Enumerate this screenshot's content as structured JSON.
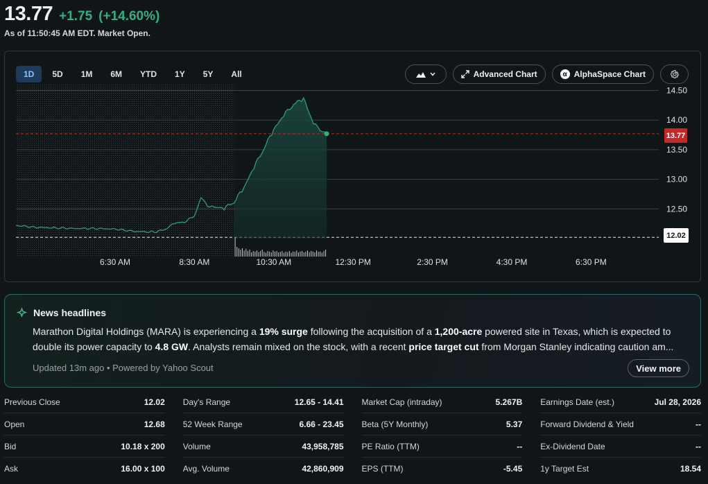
{
  "quote": {
    "price": "13.77",
    "change": "+1.75",
    "change_pct": "(+14.60%)",
    "as_of": "As of 11:50:45 AM EDT. Market Open."
  },
  "colors": {
    "up": "#2fb17e",
    "accent": "#8fc3ff",
    "price_tag": "#c62828"
  },
  "chart": {
    "ranges": [
      "1D",
      "5D",
      "1M",
      "6M",
      "YTD",
      "1Y",
      "5Y",
      "All"
    ],
    "active_range": "1D",
    "chart_type_icon": "mountain-chart-icon",
    "advanced_label": "Advanced Chart",
    "alphaspace_label": "AlphaSpace Chart",
    "settings_icon": "gear-icon",
    "price_tag": "13.77",
    "prev_close_tag": "12.02"
  },
  "chart_data": {
    "type": "area",
    "x_labels": [
      "6:30 AM",
      "8:30 AM",
      "10:30 AM",
      "12:30 PM",
      "2:30 PM",
      "4:30 PM",
      "6:30 PM"
    ],
    "y_ticks": [
      12.5,
      13.0,
      13.5,
      14.0,
      14.5
    ],
    "ylim": [
      12.0,
      14.6
    ],
    "previous_close": 12.02,
    "last_price": 13.77,
    "series": [
      {
        "x": [
          "4:00 AM",
          "4:30 AM",
          "5:00 AM",
          "5:30 AM",
          "6:00 AM",
          "6:30 AM",
          "7:00 AM",
          "7:30 AM",
          "7:45 AM",
          "8:00 AM",
          "8:15 AM",
          "8:30 AM",
          "8:40 AM",
          "8:50 AM",
          "9:00 AM",
          "9:15 AM",
          "9:30 AM",
          "9:45 AM",
          "10:00 AM",
          "10:15 AM",
          "10:30 AM",
          "10:45 AM",
          "11:00 AM",
          "11:15 AM",
          "11:30 AM",
          "11:40 AM",
          "11:50 AM"
        ],
        "values": [
          12.22,
          12.19,
          12.18,
          12.17,
          12.17,
          12.16,
          12.12,
          12.11,
          12.15,
          12.26,
          12.28,
          12.38,
          12.7,
          12.55,
          12.53,
          12.51,
          12.62,
          12.86,
          13.2,
          13.52,
          13.84,
          14.08,
          14.27,
          14.36,
          13.95,
          13.82,
          13.77
        ]
      }
    ],
    "volume": [
      0.7,
      0.35,
      0.3,
      0.25,
      0.3,
      0.22,
      0.28,
      0.2,
      0.25,
      0.15,
      0.2,
      0.18,
      0.22,
      0.16,
      0.2,
      0.25,
      0.17,
      0.14,
      0.2,
      0.18,
      0.15,
      0.22,
      0.18,
      0.2,
      0.15,
      0.17,
      0.2,
      0.14,
      0.18,
      0.16,
      0.2,
      0.14,
      0.18,
      0.17,
      0.22,
      0.15,
      0.18,
      0.2,
      0.15,
      0.18,
      0.22,
      0.16,
      0.2,
      0.18,
      0.15,
      0.22,
      0.17,
      0.18,
      0.14,
      0.2,
      0.25
    ]
  },
  "news": {
    "title": "News headlines",
    "s1": "Marathon Digital Holdings (MARA) is experiencing a ",
    "b1": "19% surge",
    "s2": " following the acquisition of a ",
    "b2": "1,200-acre",
    "s3": " powered site in Texas, which is expected to double its power capacity to ",
    "b3": "4.8 GW",
    "s4": ". Analysts remain mixed on the stock, with a recent ",
    "b4": "price target cut",
    "s5": " from Morgan Stanley indicating caution am...",
    "meta": "Updated 13m ago • Powered by Yahoo Scout",
    "view_more": "View more"
  },
  "stats": [
    [
      {
        "label": "Previous Close",
        "value": "12.02"
      },
      {
        "label": "Open",
        "value": "12.68"
      },
      {
        "label": "Bid",
        "value": "10.18 x 200"
      },
      {
        "label": "Ask",
        "value": "16.00 x 100"
      }
    ],
    [
      {
        "label": "Day's Range",
        "value": "12.65 - 14.41"
      },
      {
        "label": "52 Week Range",
        "value": "6.66 - 23.45"
      },
      {
        "label": "Volume",
        "value": "43,958,785"
      },
      {
        "label": "Avg. Volume",
        "value": "42,860,909"
      }
    ],
    [
      {
        "label": "Market Cap (intraday)",
        "value": "5.267B"
      },
      {
        "label": "Beta (5Y Monthly)",
        "value": "5.37"
      },
      {
        "label": "PE Ratio (TTM)",
        "value": "--"
      },
      {
        "label": "EPS (TTM)",
        "value": "-5.45"
      }
    ],
    [
      {
        "label": "Earnings Date (est.)",
        "value": "Jul 28, 2026"
      },
      {
        "label": "Forward Dividend & Yield",
        "value": "--"
      },
      {
        "label": "Ex-Dividend Date",
        "value": "--"
      },
      {
        "label": "1y Target Est",
        "value": "18.54"
      }
    ]
  ]
}
